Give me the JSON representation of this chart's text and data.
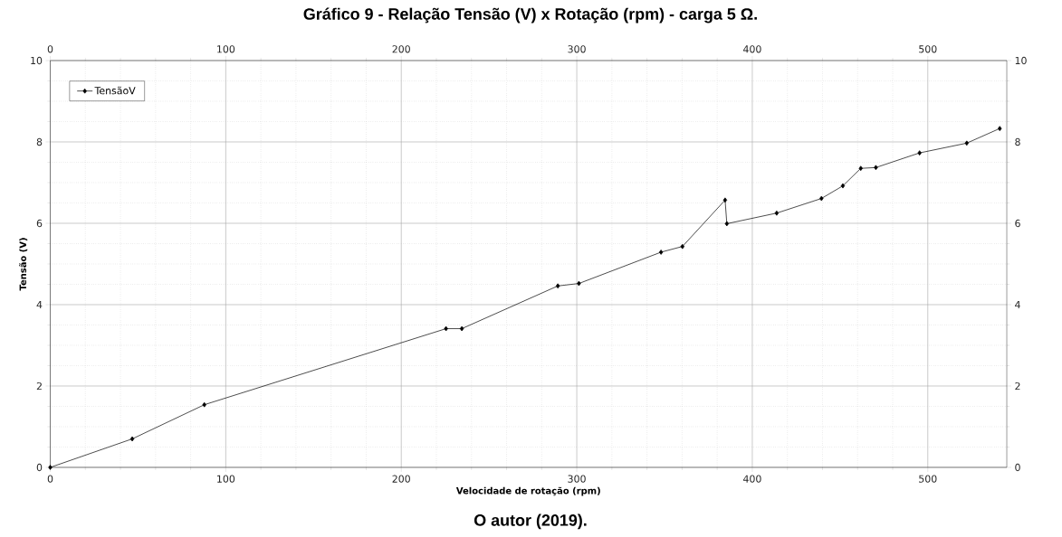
{
  "chart_data": {
    "type": "line",
    "title": "Gráfico 9 - Relação Tensão (V) x Rotação (rpm) - carga 5 Ω.",
    "xlabel": "Velocidade de rotação (rpm)",
    "ylabel": "Tensão (V)",
    "annotations": [
      "O autor (2019)."
    ],
    "series": [
      {
        "name": "TensãoV",
        "color": "#000000",
        "x": [
          0,
          46.7,
          87.8,
          225.5,
          234.5,
          289.2,
          301.2,
          348.0,
          360.2,
          384.5,
          385.5,
          413.9,
          439.4,
          451.6,
          461.8,
          470.4,
          495.3,
          522.2,
          541
        ],
        "values": [
          0,
          0.7,
          1.54,
          3.41,
          3.41,
          4.46,
          4.52,
          5.29,
          5.43,
          6.57,
          5.99,
          6.25,
          6.61,
          6.92,
          7.35,
          7.37,
          7.73,
          7.97,
          8.33
        ]
      }
    ],
    "xlim": [
      0,
      545
    ],
    "xticks": [
      0,
      100,
      200,
      300,
      400,
      500
    ],
    "x2lim": [
      0,
      545
    ],
    "x2ticks": [
      0,
      100,
      200,
      300,
      400,
      500
    ],
    "ylim": [
      0,
      10
    ],
    "yticks": [
      0,
      2,
      4,
      6,
      8,
      10
    ],
    "y2lim": [
      0,
      10
    ],
    "y2ticks": [
      0,
      2,
      4,
      6,
      8,
      10
    ],
    "grid": true,
    "legend": "top left",
    "marker": "diamond",
    "line_style": "solid"
  }
}
